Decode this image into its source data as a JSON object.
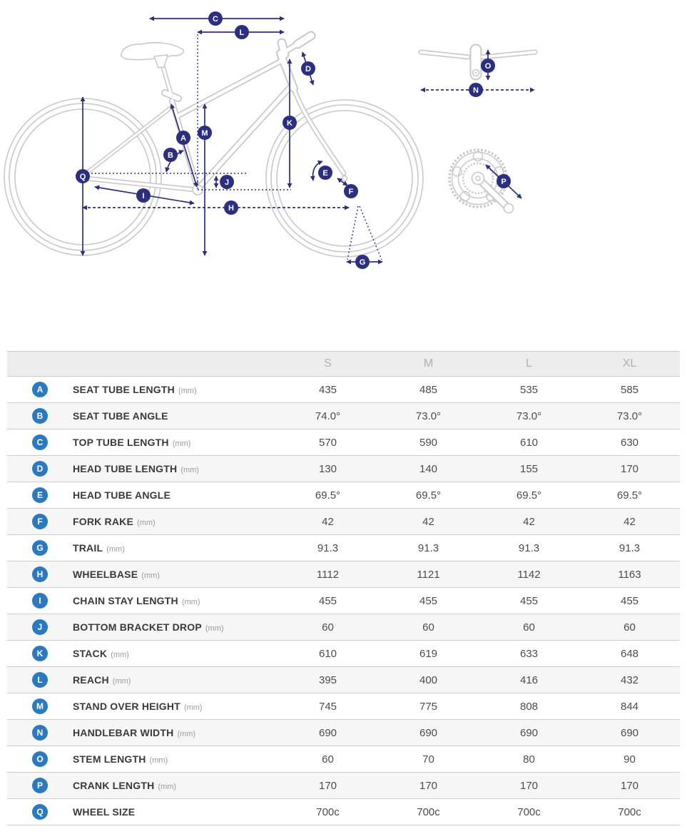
{
  "diagram": {
    "labels": {
      "a": "A",
      "b": "B",
      "c": "C",
      "d": "D",
      "e": "E",
      "f": "F",
      "g": "G",
      "h": "H",
      "i": "I",
      "j": "J",
      "k": "K",
      "l": "L",
      "m": "M",
      "n": "N",
      "o": "O",
      "p": "P",
      "q": "Q"
    },
    "colors": {
      "annotation_navy": "#2c2f80",
      "frame_gray": "#c9c9c9"
    }
  },
  "table": {
    "badge_color": "#2b7ac1",
    "size_headers": [
      "S",
      "M",
      "L",
      "XL"
    ],
    "rows": [
      {
        "badge": "A",
        "label": "SEAT TUBE LENGTH",
        "unit": "(mm)",
        "values": [
          "435",
          "485",
          "535",
          "585"
        ]
      },
      {
        "badge": "B",
        "label": "SEAT TUBE ANGLE",
        "unit": "",
        "values": [
          "74.0°",
          "73.0°",
          "73.0°",
          "73.0°"
        ]
      },
      {
        "badge": "C",
        "label": "TOP TUBE LENGTH",
        "unit": "(mm)",
        "values": [
          "570",
          "590",
          "610",
          "630"
        ]
      },
      {
        "badge": "D",
        "label": "HEAD TUBE LENGTH",
        "unit": "(mm)",
        "values": [
          "130",
          "140",
          "155",
          "170"
        ]
      },
      {
        "badge": "E",
        "label": "HEAD TUBE ANGLE",
        "unit": "",
        "values": [
          "69.5°",
          "69.5°",
          "69.5°",
          "69.5°"
        ]
      },
      {
        "badge": "F",
        "label": "FORK RAKE",
        "unit": "(mm)",
        "values": [
          "42",
          "42",
          "42",
          "42"
        ]
      },
      {
        "badge": "G",
        "label": "TRAIL",
        "unit": "(mm)",
        "values": [
          "91.3",
          "91.3",
          "91.3",
          "91.3"
        ]
      },
      {
        "badge": "H",
        "label": "WHEELBASE",
        "unit": "(mm)",
        "values": [
          "1112",
          "1121",
          "1142",
          "1163"
        ]
      },
      {
        "badge": "I",
        "label": "CHAIN STAY LENGTH",
        "unit": "(mm)",
        "values": [
          "455",
          "455",
          "455",
          "455"
        ]
      },
      {
        "badge": "J",
        "label": "BOTTOM BRACKET DROP",
        "unit": "(mm)",
        "values": [
          "60",
          "60",
          "60",
          "60"
        ]
      },
      {
        "badge": "K",
        "label": "STACK",
        "unit": "(mm)",
        "values": [
          "610",
          "619",
          "633",
          "648"
        ]
      },
      {
        "badge": "L",
        "label": "REACH",
        "unit": "(mm)",
        "values": [
          "395",
          "400",
          "416",
          "432"
        ]
      },
      {
        "badge": "M",
        "label": "STAND OVER HEIGHT",
        "unit": "(mm)",
        "values": [
          "745",
          "775",
          "808",
          "844"
        ]
      },
      {
        "badge": "N",
        "label": "HANDLEBAR WIDTH",
        "unit": "(mm)",
        "values": [
          "690",
          "690",
          "690",
          "690"
        ]
      },
      {
        "badge": "O",
        "label": "STEM LENGTH",
        "unit": "(mm)",
        "values": [
          "60",
          "70",
          "80",
          "90"
        ]
      },
      {
        "badge": "P",
        "label": "CRANK LENGTH",
        "unit": "(mm)",
        "values": [
          "170",
          "170",
          "170",
          "170"
        ]
      },
      {
        "badge": "Q",
        "label": "WHEEL SIZE",
        "unit": "",
        "values": [
          "700c",
          "700c",
          "700c",
          "700c"
        ]
      }
    ]
  }
}
